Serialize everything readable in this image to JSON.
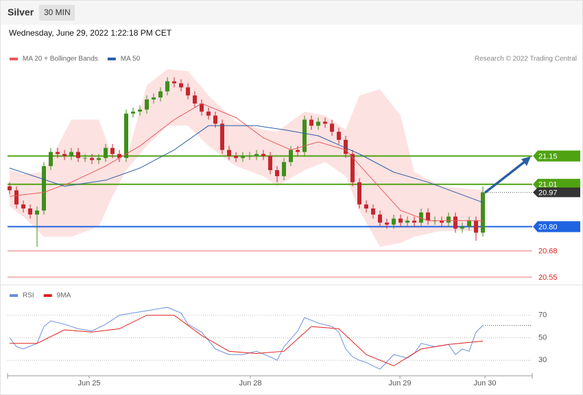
{
  "header": {
    "instrument": "Silver",
    "timeframe": "30 MIN",
    "timestamp": "Wednesday, June 29, 2022 1:22:18 PM CET"
  },
  "chart_data": [
    {
      "type": "candlestick",
      "source": "Research © 2022 Trading Central",
      "xlim": [
        -0.3,
        76.2
      ],
      "ylim": [
        20.53,
        21.6
      ],
      "xticks": [
        {
          "value": 11.6,
          "label": "Jun 25"
        },
        {
          "value": 35.1,
          "label": "Jun 28"
        },
        {
          "value": 56.9,
          "label": "Jun 29"
        },
        {
          "value": 69.3,
          "label": "Jun 30"
        }
      ],
      "up_color": "#3f8f1a",
      "down_color": "#c4262e",
      "candles": {
        "open": [
          21.0,
          20.98,
          20.91,
          20.89,
          20.86,
          20.88,
          21.1,
          21.17,
          21.16,
          21.15,
          21.17,
          21.14,
          21.14,
          21.13,
          21.14,
          21.19,
          21.16,
          21.14,
          21.36,
          21.37,
          21.38,
          21.43,
          21.44,
          21.47,
          21.52,
          21.51,
          21.49,
          21.45,
          21.41,
          21.37,
          21.35,
          21.31,
          21.18,
          21.15,
          21.14,
          21.15,
          21.15,
          21.16,
          21.15,
          21.08,
          21.05,
          21.12,
          21.18,
          21.17,
          21.33,
          21.3,
          21.32,
          21.31,
          21.27,
          21.23,
          21.16,
          21.02,
          20.91,
          20.89,
          20.86,
          20.82,
          20.81,
          20.84,
          20.82,
          20.83,
          20.82,
          20.87,
          20.83,
          20.83,
          20.82,
          20.85,
          20.79,
          20.8,
          20.83,
          20.77
        ],
        "high": [
          21.02,
          21.0,
          20.93,
          20.91,
          20.9,
          21.12,
          21.19,
          21.19,
          21.18,
          21.19,
          21.19,
          21.16,
          21.16,
          21.16,
          21.21,
          21.21,
          21.18,
          21.38,
          21.39,
          21.4,
          21.45,
          21.46,
          21.49,
          21.54,
          21.54,
          21.53,
          21.51,
          21.47,
          21.43,
          21.39,
          21.37,
          21.33,
          21.2,
          21.17,
          21.17,
          21.17,
          21.18,
          21.18,
          21.17,
          21.1,
          21.14,
          21.2,
          21.2,
          21.35,
          21.35,
          21.34,
          21.34,
          21.33,
          21.29,
          21.25,
          21.18,
          21.04,
          20.93,
          20.91,
          20.88,
          20.84,
          20.86,
          20.86,
          20.85,
          20.85,
          20.89,
          20.89,
          20.85,
          20.85,
          20.87,
          20.87,
          20.82,
          20.85,
          20.85,
          21.0
        ],
        "low": [
          20.96,
          20.89,
          20.87,
          20.84,
          20.7,
          20.86,
          21.08,
          21.14,
          21.13,
          21.13,
          21.12,
          21.12,
          21.11,
          21.11,
          21.12,
          21.14,
          21.12,
          21.12,
          21.34,
          21.35,
          21.36,
          21.41,
          21.42,
          21.45,
          21.49,
          21.47,
          21.43,
          21.39,
          21.35,
          21.33,
          21.29,
          21.16,
          21.13,
          21.12,
          21.12,
          21.13,
          21.13,
          21.13,
          21.06,
          21.02,
          21.03,
          21.1,
          21.15,
          21.15,
          21.28,
          21.28,
          21.29,
          21.25,
          21.21,
          21.14,
          21.0,
          20.89,
          20.87,
          20.84,
          20.8,
          20.79,
          20.79,
          20.8,
          20.8,
          20.8,
          20.8,
          20.81,
          20.81,
          20.8,
          20.8,
          20.77,
          20.77,
          20.78,
          20.73,
          20.75
        ],
        "close": [
          20.98,
          20.91,
          20.89,
          20.86,
          20.88,
          21.1,
          21.17,
          21.16,
          21.15,
          21.17,
          21.14,
          21.14,
          21.13,
          21.14,
          21.19,
          21.16,
          21.14,
          21.36,
          21.37,
          21.38,
          21.43,
          21.44,
          21.47,
          21.52,
          21.51,
          21.49,
          21.45,
          21.41,
          21.37,
          21.35,
          21.31,
          21.18,
          21.15,
          21.14,
          21.15,
          21.15,
          21.16,
          21.15,
          21.08,
          21.05,
          21.12,
          21.18,
          21.17,
          21.33,
          21.3,
          21.32,
          21.31,
          21.27,
          21.23,
          21.16,
          21.02,
          20.91,
          20.89,
          20.86,
          20.82,
          20.81,
          20.84,
          20.82,
          20.83,
          20.82,
          20.87,
          20.83,
          20.83,
          20.82,
          20.85,
          20.79,
          20.8,
          20.83,
          20.77,
          20.97
        ]
      },
      "series": [
        {
          "name": "MA 20 + Bollinger Bands",
          "color": "#e8595c",
          "band_color": "#fde2e2",
          "x": [
            0,
            5,
            9,
            14,
            19,
            24,
            28,
            33,
            37,
            41,
            45,
            49,
            53,
            57,
            61,
            69
          ],
          "values": [
            20.95,
            20.97,
            21.02,
            21.1,
            21.2,
            21.33,
            21.41,
            21.34,
            21.24,
            21.18,
            21.22,
            21.18,
            21.03,
            20.88,
            20.83,
            20.83
          ],
          "band_x": [
            0,
            2,
            5,
            9,
            13,
            15,
            17,
            20,
            23,
            26,
            29,
            33,
            37,
            39,
            43,
            46,
            49,
            51,
            54,
            57,
            59,
            63,
            69
          ],
          "band_upper": [
            21.08,
            21.06,
            21.07,
            21.33,
            21.33,
            21.15,
            21.13,
            21.5,
            21.58,
            21.57,
            21.45,
            21.32,
            21.28,
            21.27,
            21.37,
            21.35,
            21.28,
            21.45,
            21.48,
            21.35,
            21.07,
            21.0,
            20.98
          ],
          "band_lower": [
            20.9,
            20.85,
            20.75,
            20.75,
            20.8,
            20.95,
            21.08,
            21.2,
            21.3,
            21.3,
            21.2,
            21.1,
            21.05,
            21.0,
            21.08,
            21.12,
            21.05,
            20.88,
            20.7,
            20.72,
            20.75,
            20.78,
            20.78
          ]
        },
        {
          "name": "MA 50",
          "color": "#2c5ea3",
          "x": [
            0,
            8,
            14,
            19,
            24,
            29,
            36,
            40,
            45,
            51,
            56,
            61,
            69
          ],
          "values": [
            21.09,
            21.0,
            21.03,
            21.09,
            21.18,
            21.3,
            21.3,
            21.28,
            21.25,
            21.16,
            21.07,
            21.02,
            20.92
          ]
        }
      ],
      "levels": [
        {
          "value": 21.15,
          "color": "#4fa312",
          "tag": true
        },
        {
          "value": 21.01,
          "color": "#4fa312",
          "tag": true
        },
        {
          "value": 20.8,
          "label": "20.80",
          "color": "#1f63e0",
          "tag": true
        },
        {
          "value": 20.68,
          "color": "#f0a0a0",
          "text_color": "#e0201c",
          "tag": false
        },
        {
          "value": 20.55,
          "color": "#f0a0a0",
          "text_color": "#e0201c",
          "tag": false
        }
      ],
      "last": 20.97,
      "last_color": "#333333"
    },
    {
      "type": "line",
      "xlim": [
        -0.3,
        76.2
      ],
      "ylim": [
        18,
        82
      ],
      "yticks": [
        30,
        50,
        70
      ],
      "series": [
        {
          "name": "RSI",
          "color": "#6a8fe0",
          "x": [
            0,
            1,
            2,
            4,
            5,
            6,
            8,
            10,
            12,
            14,
            16,
            18,
            20,
            22,
            23,
            25,
            26,
            28,
            30,
            32,
            34,
            36,
            38,
            39,
            40,
            42,
            43,
            45,
            47,
            48,
            49,
            50,
            51,
            52,
            54,
            56,
            58,
            59,
            60,
            62,
            64,
            65,
            66,
            67,
            68,
            69
          ],
          "values": [
            50,
            42,
            40,
            45,
            60,
            65,
            62,
            58,
            56,
            62,
            70,
            72,
            74,
            76,
            77,
            72,
            62,
            55,
            40,
            35,
            35,
            38,
            33,
            30,
            42,
            56,
            68,
            63,
            60,
            55,
            40,
            33,
            30,
            28,
            22,
            35,
            32,
            36,
            45,
            42,
            44,
            35,
            40,
            38,
            55,
            61
          ]
        },
        {
          "name": "9MA",
          "color": "#e0201c",
          "x": [
            0,
            4,
            8,
            12,
            16,
            20,
            24,
            28,
            32,
            36,
            40,
            44,
            48,
            52,
            56,
            60,
            64,
            69
          ],
          "values": [
            45,
            45,
            57,
            55,
            58,
            70,
            70,
            52,
            38,
            36,
            38,
            60,
            58,
            35,
            25,
            40,
            44,
            47
          ]
        }
      ]
    }
  ]
}
